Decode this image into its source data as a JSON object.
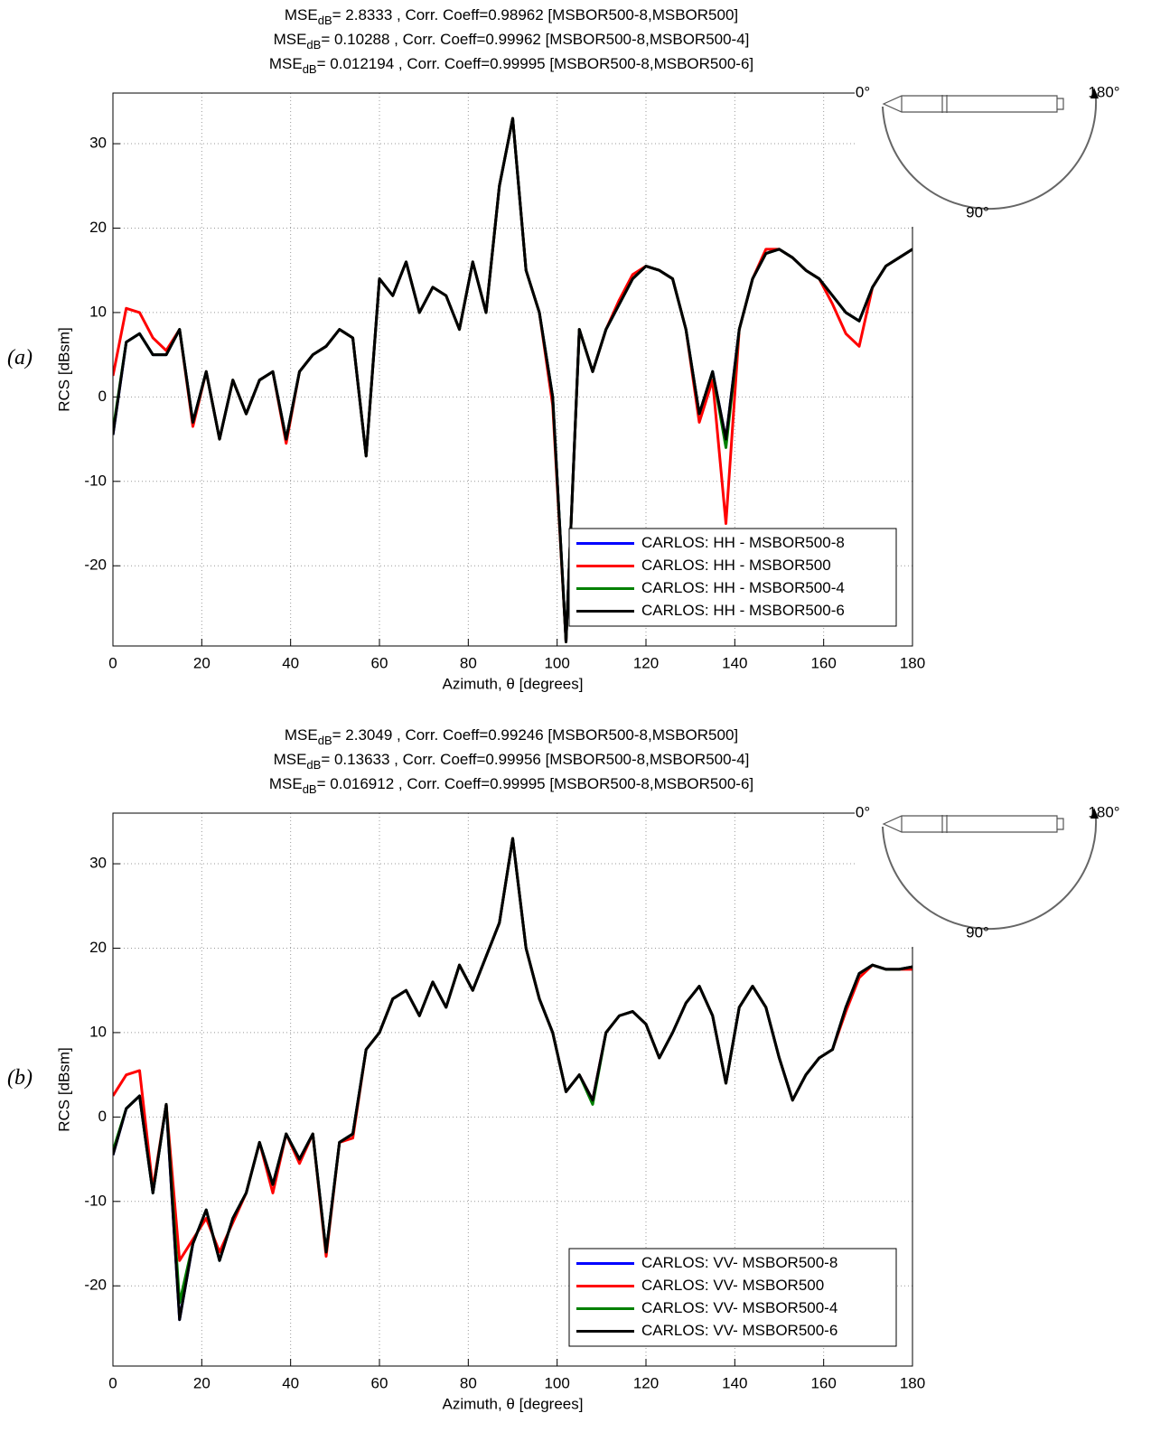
{
  "chart_data": [
    {
      "type": "line",
      "title": [
        {
          "main": "MSE",
          "sub": "dB",
          "rest": "= 2.8333 , Corr. Coeff=0.98962 [MSBOR500-8,MSBOR500]"
        },
        {
          "main": "MSE",
          "sub": "dB",
          "rest": "= 0.10288 , Corr. Coeff=0.99962 [MSBOR500-8,MSBOR500-4]"
        },
        {
          "main": "MSE",
          "sub": "dB",
          "rest": "= 0.012194 , Corr. Coeff=0.99995 [MSBOR500-8,MSBOR500-6]"
        }
      ],
      "panel_label": "(a)",
      "inset_labels": [
        "0°",
        "180°",
        "90°"
      ],
      "xlabel": "Azimuth, θ [degrees]",
      "ylabel": "RCS [dBsm]",
      "xlim": [
        0,
        180
      ],
      "xticks": [
        0,
        20,
        40,
        60,
        80,
        100,
        120,
        140,
        160,
        180
      ],
      "ylim": [
        -29.5,
        36
      ],
      "yticks": [
        -20,
        -10,
        0,
        10,
        20,
        30
      ],
      "grid": true,
      "legend": "lower right",
      "x": [
        0,
        3,
        6,
        9,
        12,
        15,
        18,
        21,
        24,
        27,
        30,
        33,
        36,
        39,
        42,
        45,
        48,
        51,
        54,
        57,
        60,
        63,
        66,
        69,
        72,
        75,
        78,
        81,
        84,
        87,
        90,
        93,
        96,
        99,
        102,
        105,
        108,
        111,
        114,
        117,
        120,
        123,
        126,
        129,
        132,
        135,
        138,
        141,
        144,
        147,
        150,
        153,
        156,
        159,
        162,
        165,
        168,
        171,
        174,
        177,
        180
      ],
      "series": [
        {
          "name": "CARLOS: HH - MSBOR500-8",
          "color": "#0000ff",
          "values": [
            -4.5,
            6.5,
            7.5,
            5,
            5,
            8,
            -3,
            3,
            -5,
            2,
            -2,
            2,
            3,
            -5,
            3,
            5,
            6,
            8,
            7,
            -7,
            14,
            12,
            16,
            10,
            13,
            12,
            8,
            16,
            10,
            25,
            33,
            15,
            10,
            0,
            -29,
            8,
            3,
            8,
            11,
            14,
            15.5,
            15,
            14,
            8,
            -2,
            3,
            -5,
            8,
            14,
            17,
            17.5,
            16.5,
            15,
            14,
            12,
            10,
            9,
            13,
            15.5,
            16.5,
            17.5
          ]
        },
        {
          "name": "CARLOS: HH - MSBOR500",
          "color": "#ff0000",
          "values": [
            2.5,
            10.5,
            10,
            7,
            5.5,
            8,
            -3.5,
            3,
            -5,
            2,
            -2,
            2,
            3,
            -5.5,
            3,
            5,
            6,
            8,
            7,
            -7,
            14,
            12,
            16,
            10,
            13,
            12,
            8,
            16,
            10,
            25,
            33,
            15,
            10,
            -1,
            -29,
            8,
            3,
            8,
            11.5,
            14.5,
            15.5,
            15,
            14,
            8,
            -3,
            2,
            -15,
            8,
            14,
            17.5,
            17.5,
            16.5,
            15,
            14,
            11,
            7.5,
            6,
            13,
            15.5,
            16.5,
            17.5
          ]
        },
        {
          "name": "CARLOS: HH - MSBOR500-4",
          "color": "#008000",
          "values": [
            -4,
            6.5,
            7.5,
            5,
            5,
            8,
            -3,
            3,
            -5,
            2,
            -2,
            2,
            3,
            -5,
            3,
            5,
            6,
            8,
            7,
            -7,
            14,
            12,
            16,
            10,
            13,
            12,
            8,
            16,
            10,
            25,
            33,
            15,
            10,
            0,
            -29,
            8,
            3,
            8,
            11,
            14,
            15.5,
            15,
            14,
            8,
            -2,
            3,
            -6,
            8,
            14,
            17,
            17.5,
            16.5,
            15,
            14,
            12,
            10,
            9,
            13,
            15.5,
            16.5,
            17.5
          ]
        },
        {
          "name": "CARLOS: HH - MSBOR500-6",
          "color": "#000000",
          "values": [
            -4.5,
            6.5,
            7.5,
            5,
            5,
            8,
            -3,
            3,
            -5,
            2,
            -2,
            2,
            3,
            -5,
            3,
            5,
            6,
            8,
            7,
            -7,
            14,
            12,
            16,
            10,
            13,
            12,
            8,
            16,
            10,
            25,
            33,
            15,
            10,
            0,
            -29,
            8,
            3,
            8,
            11,
            14,
            15.5,
            15,
            14,
            8,
            -2,
            3,
            -5,
            8,
            14,
            17,
            17.5,
            16.5,
            15,
            14,
            12,
            10,
            9,
            13,
            15.5,
            16.5,
            17.5
          ]
        }
      ]
    },
    {
      "type": "line",
      "title": [
        {
          "main": "MSE",
          "sub": "dB",
          "rest": "= 2.3049 , Corr. Coeff=0.99246 [MSBOR500-8,MSBOR500]"
        },
        {
          "main": "MSE",
          "sub": "dB",
          "rest": "= 0.13633 , Corr. Coeff=0.99956 [MSBOR500-8,MSBOR500-4]"
        },
        {
          "main": "MSE",
          "sub": "dB",
          "rest": "= 0.016912 , Corr. Coeff=0.99995 [MSBOR500-8,MSBOR500-6]"
        }
      ],
      "panel_label": "(b)",
      "inset_labels": [
        "0°",
        "180°",
        "90°"
      ],
      "xlabel": "Azimuth, θ [degrees]",
      "ylabel": "RCS [dBsm]",
      "xlim": [
        0,
        180
      ],
      "xticks": [
        0,
        20,
        40,
        60,
        80,
        100,
        120,
        140,
        160,
        180
      ],
      "ylim": [
        -29.5,
        36
      ],
      "yticks": [
        -20,
        -10,
        0,
        10,
        20,
        30
      ],
      "grid": true,
      "legend": "lower right",
      "x": [
        0,
        3,
        6,
        9,
        12,
        15,
        18,
        21,
        24,
        27,
        30,
        33,
        36,
        39,
        42,
        45,
        48,
        51,
        54,
        57,
        60,
        63,
        66,
        69,
        72,
        75,
        78,
        81,
        84,
        87,
        90,
        93,
        96,
        99,
        102,
        105,
        108,
        111,
        114,
        117,
        120,
        123,
        126,
        129,
        132,
        135,
        138,
        141,
        144,
        147,
        150,
        153,
        156,
        159,
        162,
        165,
        168,
        171,
        174,
        177,
        180
      ],
      "series": [
        {
          "name": "CARLOS: VV- MSBOR500-8",
          "color": "#0000ff",
          "values": [
            -4.5,
            1,
            2.5,
            -9,
            1.5,
            -24,
            -15,
            -11,
            -17,
            -12,
            -9,
            -3,
            -8,
            -2,
            -5,
            -2,
            -16,
            -3,
            -2,
            8,
            10,
            14,
            15,
            12,
            16,
            13,
            18,
            15,
            19,
            23,
            33,
            20,
            14,
            10,
            3,
            5,
            2,
            10,
            12,
            12.5,
            11,
            7,
            10,
            13.5,
            15.5,
            12,
            4,
            13,
            15.5,
            13,
            7,
            2,
            5,
            7,
            8,
            13,
            17,
            18,
            17.5,
            17.5,
            17.8
          ]
        },
        {
          "name": "CARLOS: VV- MSBOR500",
          "color": "#ff0000",
          "values": [
            2.5,
            5,
            5.5,
            -8.5,
            1.5,
            -17,
            -14.5,
            -12,
            -16,
            -12.5,
            -9,
            -3,
            -9,
            -2,
            -5.5,
            -2,
            -16.5,
            -3,
            -2.5,
            8,
            10,
            14,
            15,
            12,
            16,
            13,
            18,
            15,
            19,
            23,
            33,
            20,
            14,
            10,
            3,
            5,
            2,
            10,
            12,
            12.5,
            11,
            7,
            10,
            13.5,
            15.5,
            12,
            4,
            13,
            15.5,
            13,
            7,
            2,
            5,
            7,
            8,
            12.5,
            16.5,
            18,
            17.5,
            17.5,
            17.5
          ]
        },
        {
          "name": "CARLOS: VV- MSBOR500-4",
          "color": "#008000",
          "values": [
            -4,
            1,
            2.5,
            -9,
            1.5,
            -22,
            -15,
            -11,
            -17,
            -12,
            -9,
            -3,
            -8,
            -2,
            -5,
            -2,
            -16,
            -3,
            -2,
            8,
            10,
            14,
            15,
            12,
            16,
            13,
            18,
            15,
            19,
            23,
            33,
            20,
            14,
            10,
            3,
            5,
            1.5,
            10,
            12,
            12.5,
            11,
            7,
            10,
            13.5,
            15.5,
            12,
            4,
            13,
            15.5,
            13,
            7,
            2,
            5,
            7,
            8,
            13,
            17,
            18,
            17.5,
            17.5,
            17.8
          ]
        },
        {
          "name": "CARLOS: VV- MSBOR500-6",
          "color": "#000000",
          "values": [
            -4.5,
            1,
            2.5,
            -9,
            1.5,
            -24,
            -15,
            -11,
            -17,
            -12,
            -9,
            -3,
            -8,
            -2,
            -5,
            -2,
            -16,
            -3,
            -2,
            8,
            10,
            14,
            15,
            12,
            16,
            13,
            18,
            15,
            19,
            23,
            33,
            20,
            14,
            10,
            3,
            5,
            2,
            10,
            12,
            12.5,
            11,
            7,
            10,
            13.5,
            15.5,
            12,
            4,
            13,
            15.5,
            13,
            7,
            2,
            5,
            7,
            8,
            13,
            17,
            18,
            17.5,
            17.5,
            17.8
          ]
        }
      ]
    }
  ]
}
